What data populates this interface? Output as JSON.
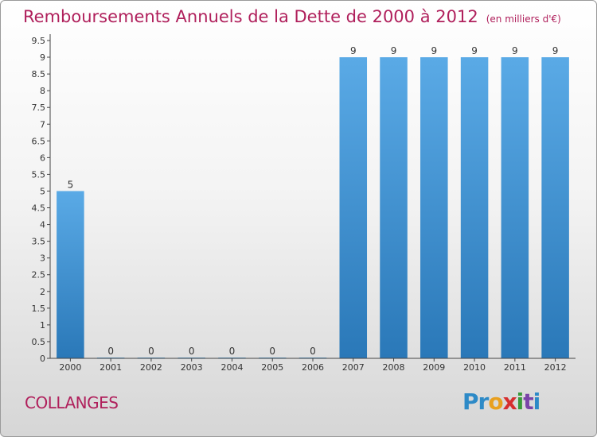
{
  "title": "Remboursements Annuels de la Dette de 2000 à 2012",
  "unit": "(en milliers d'€)",
  "commune": "COLLANGES",
  "logo": {
    "letters": [
      "P",
      "r",
      "o",
      "x",
      "i",
      "t",
      "i"
    ],
    "colors": [
      "#2d8ac7",
      "#2d8ac7",
      "#e8a020",
      "#d62f2f",
      "#3a9a3a",
      "#7a44a8",
      "#2d8ac7"
    ]
  },
  "chart_data": {
    "type": "bar",
    "title": "Remboursements Annuels de la Dette de 2000 à 2012",
    "ylabel": "(en milliers d'€)",
    "categories": [
      "2000",
      "2001",
      "2002",
      "2003",
      "2004",
      "2005",
      "2006",
      "2007",
      "2008",
      "2009",
      "2010",
      "2011",
      "2012"
    ],
    "values": [
      5,
      0,
      0,
      0,
      0,
      0,
      0,
      9,
      9,
      9,
      9,
      9,
      9
    ],
    "value_labels": [
      "5",
      "0",
      "0",
      "0",
      "0",
      "0",
      "0",
      "9",
      "9",
      "9",
      "9",
      "9",
      "9"
    ],
    "ylim": [
      0,
      9.5
    ],
    "yticks": [
      "0",
      "0.5",
      "1",
      "1.5",
      "2",
      "2.5",
      "3",
      "3.5",
      "4",
      "4.5",
      "5",
      "5.5",
      "6",
      "6.5",
      "7",
      "7.5",
      "8",
      "8.5",
      "9",
      "9.5"
    ],
    "grid": false,
    "bar_color": "#3a8fd0"
  }
}
